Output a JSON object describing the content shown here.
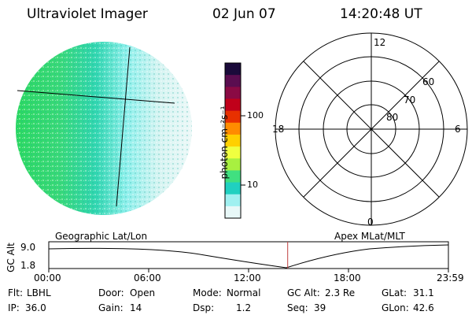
{
  "header": {
    "instrument": "Ultraviolet Imager",
    "date": "02 Jun 07",
    "time": "14:20:48 UT"
  },
  "colorbar": {
    "label": "photon cm⁻²s⁻¹",
    "ticks": [
      "100",
      "10"
    ],
    "colors": [
      "#1a0a3a",
      "#5a0d50",
      "#8a0a44",
      "#c0001a",
      "#e83000",
      "#ff8c00",
      "#ffd000",
      "#f0ff40",
      "#a8f040",
      "#40e080",
      "#20d0c0",
      "#a0f0f0",
      "#e8f8f8"
    ]
  },
  "polar_plot": {
    "labels": {
      "top": "12",
      "bottom": "0",
      "left": "18",
      "right": "6"
    },
    "rings": [
      "60",
      "70",
      "80"
    ]
  },
  "timeline": {
    "left_label": "Geographic Lat/Lon",
    "right_label": "Apex MLat/MLT",
    "axis_title": "GC Alt",
    "y_ticks": [
      "9.0",
      "1.8"
    ],
    "x_ticks": [
      "00:00",
      "06:00",
      "12:00",
      "18:00",
      "23:59"
    ],
    "current_time_hours": 14.35
  },
  "status": {
    "row1": [
      {
        "label": "Flt:",
        "value": "LBHL"
      },
      {
        "label": "Door:",
        "value": "Open"
      },
      {
        "label": "Mode:",
        "value": "Normal"
      },
      {
        "label": "GC Alt:",
        "value": "2.3 Re"
      },
      {
        "label": "GLat:",
        "value": "31.1"
      }
    ],
    "row2": [
      {
        "label": "IP:",
        "value": "36.0"
      },
      {
        "label": "Gain:",
        "value": "14"
      },
      {
        "label": "Dsp:",
        "value": "1.2"
      },
      {
        "label": "Seq:",
        "value": "39"
      },
      {
        "label": "GLon:",
        "value": "42.6"
      }
    ]
  }
}
